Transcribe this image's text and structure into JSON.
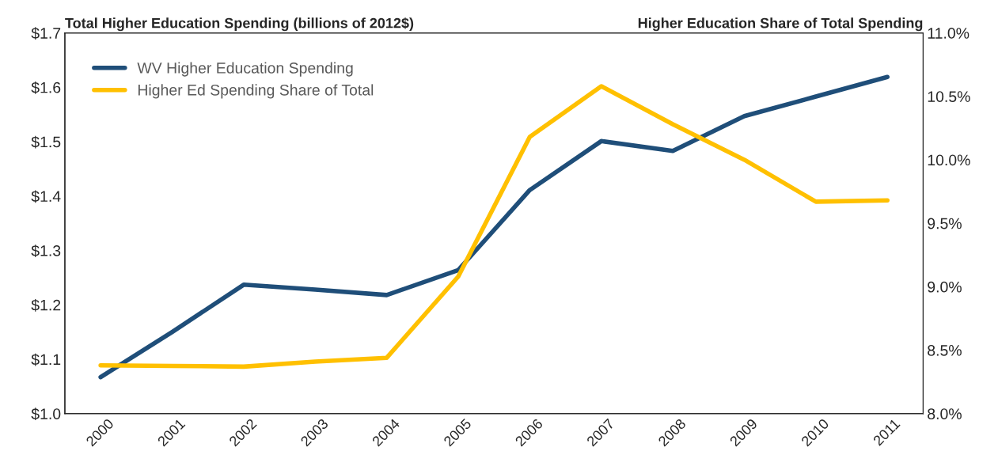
{
  "chart_data": {
    "type": "line",
    "ylabel": "Total Higher Education Spending (billions of 2012$)",
    "y2label": "Higher Education Share of Total Spending",
    "categories": [
      "2000",
      "2001",
      "2002",
      "2003",
      "2004",
      "2005",
      "2006",
      "2007",
      "2008",
      "2009",
      "2010",
      "2011"
    ],
    "series": [
      {
        "name": "WV Higher Education Spending",
        "color": "#1f4e79",
        "values": [
          1.067,
          1.15,
          1.237,
          1.228,
          1.218,
          1.264,
          1.411,
          1.501,
          1.483,
          1.547,
          1.583,
          1.619
        ]
      },
      {
        "name": "Higher Ed Spending Share of Total",
        "color": "#ffc000",
        "axis": "y2",
        "values": [
          8.38,
          8.376,
          8.37,
          8.41,
          8.44,
          9.08,
          10.18,
          10.58,
          10.28,
          10.0,
          9.67,
          9.68
        ]
      }
    ],
    "ylim": [
      1.0,
      1.7
    ],
    "yticks": [
      {
        "value": 1.0,
        "label": "$1.0"
      },
      {
        "value": 1.1,
        "label": "$1.1"
      },
      {
        "value": 1.2,
        "label": "$1.2"
      },
      {
        "value": 1.3,
        "label": "$1.3"
      },
      {
        "value": 1.4,
        "label": "$1.4"
      },
      {
        "value": 1.5,
        "label": "$1.5"
      },
      {
        "value": 1.6,
        "label": "$1.6"
      },
      {
        "value": 1.7,
        "label": "$1.7"
      }
    ],
    "y2lim": [
      8.0,
      11.0
    ],
    "y2ticks": [
      {
        "value": 8.0,
        "label": "8.0%"
      },
      {
        "value": 8.5,
        "label": "8.5%"
      },
      {
        "value": 9.0,
        "label": "9.0%"
      },
      {
        "value": 9.5,
        "label": "9.5%"
      },
      {
        "value": 10.0,
        "label": "10.0%"
      },
      {
        "value": 10.5,
        "label": "10.5%"
      },
      {
        "value": 11.0,
        "label": "11.0%"
      }
    ],
    "grid": false,
    "legend": "top left",
    "marker": "none",
    "line_style": "solid"
  }
}
